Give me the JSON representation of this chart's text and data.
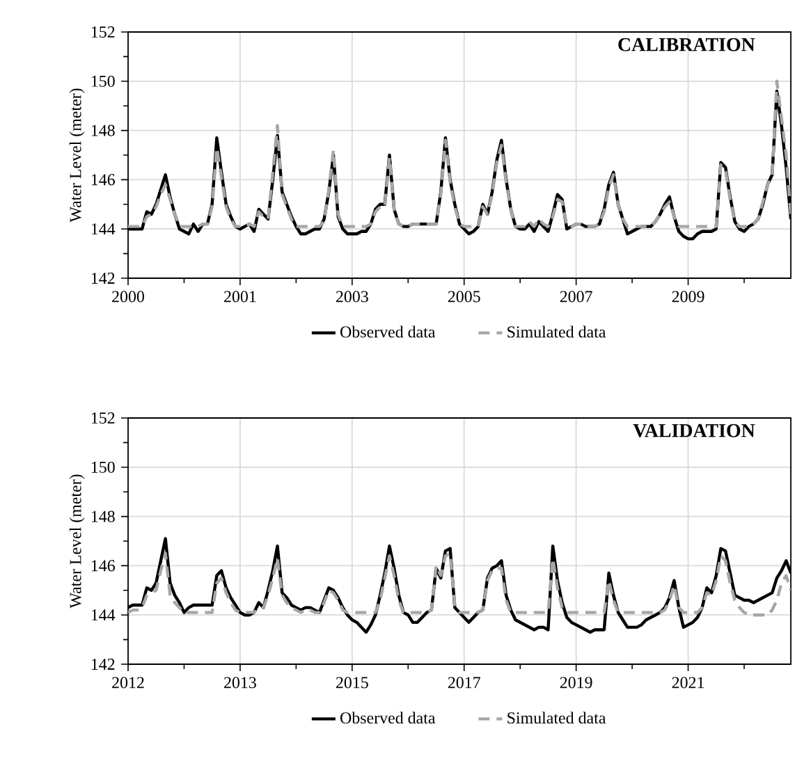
{
  "chart_data": [
    {
      "type": "line",
      "title": "CALIBRATION",
      "ylabel": "Water Level (meter)",
      "ylim": [
        142,
        152
      ],
      "yticks": [
        142,
        144,
        146,
        148,
        150,
        152
      ],
      "grid": true,
      "legend": "bottom",
      "categories": [
        "2000",
        null,
        null,
        null,
        null,
        null,
        null,
        null,
        null,
        null,
        null,
        null,
        null,
        null,
        null,
        null,
        null,
        null,
        null,
        null,
        null,
        null,
        null,
        null,
        "2001",
        null,
        null,
        null,
        null,
        null,
        null,
        null,
        null,
        null,
        null,
        null,
        null,
        null,
        null,
        null,
        null,
        null,
        null,
        null,
        null,
        null,
        null,
        null,
        "2003",
        null,
        null,
        null,
        null,
        null,
        null,
        null,
        null,
        null,
        null,
        null,
        null,
        null,
        null,
        null,
        null,
        null,
        null,
        null,
        null,
        null,
        null,
        null,
        "2005",
        null,
        null,
        null,
        null,
        null,
        null,
        null,
        null,
        null,
        null,
        null,
        null,
        null,
        null,
        null,
        null,
        null,
        null,
        null,
        null,
        null,
        null,
        null,
        "2007",
        null,
        null,
        null,
        null,
        null,
        null,
        null,
        null,
        null,
        null,
        null,
        null,
        null,
        null,
        null,
        null,
        null,
        null,
        null,
        null,
        null,
        null,
        null,
        "2009",
        null,
        null,
        null,
        null,
        null,
        null,
        null,
        null,
        null,
        null,
        null,
        null,
        null,
        null,
        null,
        null,
        null,
        null,
        null,
        null,
        null,
        null
      ],
      "series": [
        {
          "name": "Observed data",
          "color": "#000000",
          "line_style": "solid",
          "values": [
            144.0,
            144.0,
            144.0,
            144.0,
            144.7,
            144.6,
            145.0,
            145.6,
            146.2,
            145.3,
            144.6,
            144.0,
            143.9,
            143.8,
            144.2,
            143.9,
            144.2,
            144.2,
            145.0,
            147.7,
            146.3,
            145.0,
            144.5,
            144.1,
            144.0,
            144.1,
            144.2,
            143.9,
            144.8,
            144.6,
            144.4,
            146.0,
            147.8,
            145.5,
            145.0,
            144.5,
            144.1,
            143.8,
            143.8,
            143.9,
            144.0,
            144.0,
            144.4,
            145.5,
            147.0,
            144.5,
            144.0,
            143.8,
            143.8,
            143.8,
            143.9,
            143.9,
            144.2,
            144.8,
            145.0,
            145.0,
            147.0,
            144.8,
            144.2,
            144.1,
            144.1,
            144.2,
            144.2,
            144.2,
            144.2,
            144.2,
            144.2,
            145.5,
            147.7,
            146.0,
            145.0,
            144.2,
            144.0,
            143.8,
            143.9,
            144.1,
            145.0,
            144.6,
            145.5,
            146.8,
            147.6,
            146.0,
            144.8,
            144.1,
            144.0,
            144.0,
            144.2,
            143.9,
            144.3,
            144.1,
            143.9,
            144.6,
            145.4,
            145.2,
            144.0,
            144.1,
            144.2,
            144.2,
            144.1,
            144.1,
            144.1,
            144.2,
            144.8,
            145.8,
            146.3,
            145.0,
            144.4,
            143.8,
            143.9,
            144.0,
            144.1,
            144.1,
            144.1,
            144.3,
            144.6,
            145.0,
            145.3,
            144.5,
            143.9,
            143.7,
            143.6,
            143.6,
            143.8,
            143.9,
            143.9,
            143.9,
            144.0,
            146.7,
            146.5,
            145.3,
            144.3,
            144.0,
            143.9,
            144.1,
            144.2,
            144.4,
            145.0,
            145.8,
            146.2,
            149.6,
            148.2,
            146.5,
            144.4
          ]
        },
        {
          "name": "Simulated data",
          "color": "#a6a6a6",
          "line_style": "dashed",
          "values": [
            144.1,
            144.1,
            144.1,
            144.1,
            144.5,
            144.6,
            144.9,
            145.4,
            145.8,
            145.2,
            144.6,
            144.1,
            144.1,
            144.1,
            144.1,
            144.1,
            144.2,
            144.2,
            144.9,
            147.3,
            146.1,
            144.9,
            144.4,
            144.1,
            144.1,
            144.1,
            144.2,
            144.1,
            144.7,
            144.5,
            144.4,
            146.3,
            148.2,
            145.4,
            144.9,
            144.4,
            144.1,
            144.1,
            144.1,
            144.1,
            144.1,
            144.1,
            144.3,
            145.6,
            147.2,
            144.6,
            144.1,
            144.1,
            144.1,
            144.1,
            144.1,
            144.1,
            144.2,
            144.7,
            144.9,
            144.9,
            146.9,
            144.8,
            144.2,
            144.1,
            144.1,
            144.2,
            144.2,
            144.2,
            144.2,
            144.2,
            144.2,
            145.4,
            147.6,
            145.9,
            144.9,
            144.2,
            144.1,
            144.1,
            144.1,
            144.1,
            144.9,
            144.6,
            145.4,
            146.7,
            147.4,
            145.9,
            144.8,
            144.1,
            144.1,
            144.1,
            144.3,
            144.1,
            144.4,
            144.2,
            144.1,
            144.5,
            145.2,
            145.1,
            144.1,
            144.1,
            144.2,
            144.2,
            144.1,
            144.1,
            144.1,
            144.2,
            144.7,
            145.7,
            146.2,
            145.0,
            144.4,
            144.1,
            144.1,
            144.1,
            144.1,
            144.1,
            144.1,
            144.3,
            144.6,
            144.9,
            145.1,
            144.5,
            144.1,
            144.1,
            144.1,
            144.1,
            144.1,
            144.1,
            144.1,
            144.1,
            144.1,
            146.6,
            146.4,
            145.2,
            144.3,
            144.1,
            144.1,
            144.1,
            144.2,
            144.4,
            145.1,
            145.8,
            146.1,
            150.0,
            148.5,
            147.0,
            144.6
          ]
        }
      ]
    },
    {
      "type": "line",
      "title": "VALIDATION",
      "ylabel": "Water Level (meter)",
      "ylim": [
        142,
        152
      ],
      "yticks": [
        142,
        144,
        146,
        148,
        150,
        152
      ],
      "grid": true,
      "legend": "bottom",
      "categories": [
        "2012",
        null,
        null,
        null,
        null,
        null,
        null,
        null,
        null,
        null,
        null,
        null,
        null,
        null,
        null,
        null,
        null,
        null,
        null,
        null,
        null,
        null,
        null,
        null,
        "2013",
        null,
        null,
        null,
        null,
        null,
        null,
        null,
        null,
        null,
        null,
        null,
        null,
        null,
        null,
        null,
        null,
        null,
        null,
        null,
        null,
        null,
        null,
        null,
        "2015",
        null,
        null,
        null,
        null,
        null,
        null,
        null,
        null,
        null,
        null,
        null,
        null,
        null,
        null,
        null,
        null,
        null,
        null,
        null,
        null,
        null,
        null,
        null,
        "2017",
        null,
        null,
        null,
        null,
        null,
        null,
        null,
        null,
        null,
        null,
        null,
        null,
        null,
        null,
        null,
        null,
        null,
        null,
        null,
        null,
        null,
        null,
        null,
        "2019",
        null,
        null,
        null,
        null,
        null,
        null,
        null,
        null,
        null,
        null,
        null,
        null,
        null,
        null,
        null,
        null,
        null,
        null,
        null,
        null,
        null,
        null,
        null,
        "2021",
        null,
        null,
        null,
        null,
        null,
        null,
        null,
        null,
        null,
        null,
        null,
        null,
        null,
        null,
        null,
        null,
        null,
        null,
        null,
        null,
        null,
        null
      ],
      "series": [
        {
          "name": "Observed data",
          "color": "#000000",
          "line_style": "solid",
          "values": [
            144.3,
            144.4,
            144.4,
            144.4,
            145.1,
            145.0,
            145.3,
            146.2,
            147.1,
            145.3,
            144.8,
            144.5,
            144.1,
            144.3,
            144.4,
            144.4,
            144.4,
            144.4,
            144.4,
            145.6,
            145.8,
            145.1,
            144.7,
            144.4,
            144.1,
            144.0,
            144.0,
            144.1,
            144.5,
            144.3,
            145.0,
            145.8,
            146.8,
            144.9,
            144.7,
            144.4,
            144.3,
            144.2,
            144.3,
            144.3,
            144.2,
            144.1,
            144.6,
            145.1,
            145.0,
            144.7,
            144.3,
            144.0,
            143.8,
            143.7,
            143.5,
            143.3,
            143.6,
            144.0,
            144.8,
            145.7,
            146.8,
            145.9,
            144.8,
            144.1,
            144.0,
            143.7,
            143.7,
            143.9,
            144.1,
            144.2,
            145.9,
            145.5,
            146.6,
            146.7,
            144.3,
            144.1,
            143.9,
            143.7,
            143.9,
            144.1,
            144.2,
            145.5,
            145.9,
            146.0,
            146.2,
            144.8,
            144.2,
            143.8,
            143.7,
            143.6,
            143.5,
            143.4,
            143.5,
            143.5,
            143.4,
            146.8,
            145.4,
            144.5,
            143.9,
            143.7,
            143.6,
            143.5,
            143.4,
            143.3,
            143.4,
            143.4,
            143.4,
            145.7,
            144.8,
            144.1,
            143.8,
            143.5,
            143.5,
            143.5,
            143.6,
            143.8,
            143.9,
            144.0,
            144.1,
            144.3,
            144.7,
            145.4,
            144.3,
            143.5,
            143.6,
            143.7,
            143.9,
            144.3,
            145.1,
            144.9,
            145.6,
            146.7,
            146.6,
            145.7,
            144.8,
            144.7,
            144.6,
            144.6,
            144.5,
            144.6,
            144.7,
            144.8,
            144.9,
            145.5,
            145.8,
            146.2,
            145.7
          ]
        },
        {
          "name": "Simulated data",
          "color": "#a6a6a6",
          "line_style": "dashed",
          "values": [
            144.1,
            144.2,
            144.2,
            144.3,
            144.8,
            144.9,
            145.0,
            145.8,
            146.5,
            144.8,
            144.5,
            144.3,
            144.1,
            144.1,
            144.1,
            144.1,
            144.1,
            144.1,
            144.1,
            145.3,
            145.5,
            144.9,
            144.5,
            144.2,
            144.1,
            144.1,
            144.1,
            144.1,
            144.3,
            144.3,
            144.8,
            145.5,
            146.3,
            144.8,
            144.5,
            144.3,
            144.2,
            144.1,
            144.2,
            144.2,
            144.1,
            144.1,
            144.5,
            145.0,
            144.9,
            144.6,
            144.2,
            144.1,
            144.1,
            144.1,
            144.1,
            144.1,
            144.1,
            144.1,
            144.6,
            145.5,
            146.4,
            145.6,
            144.6,
            144.1,
            144.1,
            144.1,
            144.1,
            144.1,
            144.1,
            144.2,
            146.0,
            145.6,
            146.4,
            146.5,
            144.4,
            144.1,
            144.1,
            144.1,
            144.1,
            144.1,
            144.2,
            145.4,
            145.8,
            145.9,
            145.9,
            144.6,
            144.1,
            144.1,
            144.1,
            144.1,
            144.1,
            144.1,
            144.1,
            144.1,
            144.1,
            146.3,
            145.1,
            144.3,
            144.1,
            144.1,
            144.1,
            144.1,
            144.1,
            144.1,
            144.1,
            144.1,
            144.1,
            145.4,
            144.6,
            144.1,
            144.1,
            144.1,
            144.1,
            144.1,
            144.1,
            144.1,
            144.1,
            144.1,
            144.1,
            144.2,
            144.6,
            145.2,
            144.3,
            144.1,
            144.1,
            144.1,
            144.1,
            144.3,
            144.9,
            144.8,
            145.4,
            146.4,
            146.2,
            145.3,
            144.6,
            144.3,
            144.1,
            144.0,
            144.0,
            144.0,
            144.0,
            144.0,
            144.2,
            144.6,
            145.3,
            145.6,
            145.0
          ]
        }
      ]
    }
  ]
}
